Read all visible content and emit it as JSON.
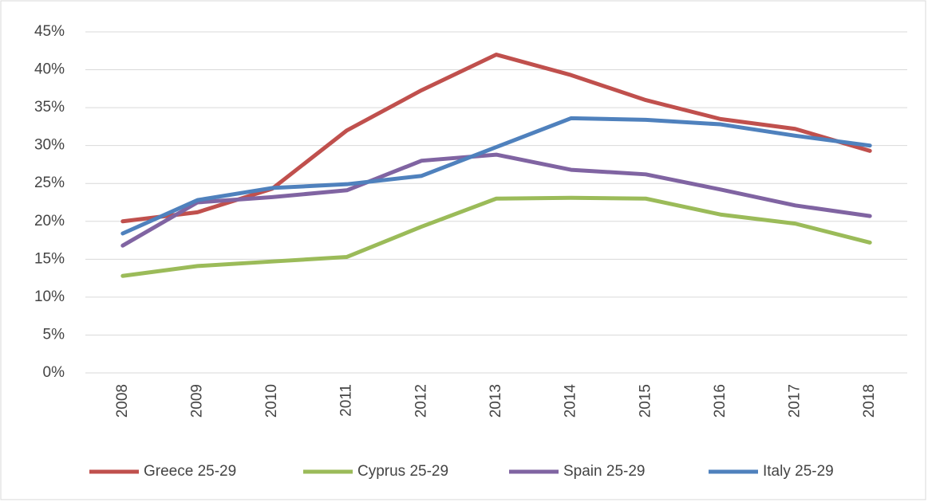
{
  "chart_data": {
    "type": "line",
    "categories": [
      "2008",
      "2009",
      "2010",
      "2011",
      "2012",
      "2013",
      "2014",
      "2015",
      "2016",
      "2017",
      "2018"
    ],
    "series": [
      {
        "name": "Greece 25-29",
        "color": "#c0504d",
        "values": [
          20.0,
          21.2,
          24.3,
          32.0,
          37.3,
          42.0,
          39.3,
          36.0,
          33.5,
          32.2,
          29.3
        ]
      },
      {
        "name": "Cyprus 25-29",
        "color": "#9bbb59",
        "values": [
          12.8,
          14.1,
          14.7,
          15.3,
          19.3,
          23.0,
          23.1,
          23.0,
          20.9,
          19.7,
          17.2
        ]
      },
      {
        "name": "Spain 25-29",
        "color": "#8064a2",
        "values": [
          16.8,
          22.5,
          23.2,
          24.1,
          28.0,
          28.8,
          26.8,
          26.2,
          24.2,
          22.1,
          20.7
        ]
      },
      {
        "name": "Italy 25-29",
        "color": "#4f81bd",
        "values": [
          18.4,
          22.8,
          24.4,
          24.9,
          26.0,
          29.8,
          33.6,
          33.4,
          32.8,
          31.3,
          30.0
        ]
      }
    ],
    "ylim": [
      0,
      45
    ],
    "yticks": [
      {
        "value": 0,
        "label": "0%"
      },
      {
        "value": 5,
        "label": "5%"
      },
      {
        "value": 10,
        "label": "10%"
      },
      {
        "value": 15,
        "label": "15%"
      },
      {
        "value": 20,
        "label": "20%"
      },
      {
        "value": 25,
        "label": "25%"
      },
      {
        "value": 30,
        "label": "30%"
      },
      {
        "value": 35,
        "label": "35%"
      },
      {
        "value": 40,
        "label": "40%"
      },
      {
        "value": 45,
        "label": "45%"
      }
    ],
    "grid": true,
    "legend": "bottom"
  }
}
